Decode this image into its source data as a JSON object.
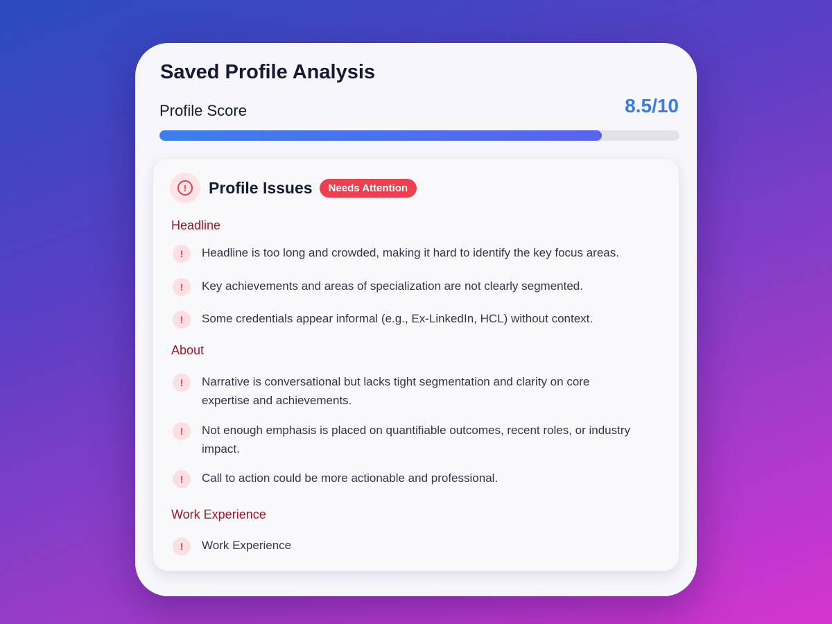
{
  "title": "Saved Profile Analysis",
  "score": {
    "label": "Profile Score",
    "value": "8.5/10",
    "percent": 85,
    "colors": [
      "#3b7fee",
      "#5a63ee"
    ]
  },
  "issues": {
    "title": "Profile Issues",
    "badge": "Needs Attention",
    "icon": "alert-circle-icon",
    "accent": "#ec4050",
    "sections": [
      {
        "name": "Headline",
        "items": [
          "Headline is too long and crowded, making it hard to identify the key focus areas.",
          "Key achievements and areas of specialization are not clearly segmented.",
          "Some credentials appear informal (e.g., Ex-LinkedIn, HCL) without context."
        ]
      },
      {
        "name": "About",
        "items": [
          "Narrative is conversational but lacks tight segmentation and clarity on core expertise and achievements.",
          "Not enough emphasis is placed on quantifiable outcomes, recent roles, or industry impact.",
          "Call to action could be more actionable and professional."
        ]
      },
      {
        "name": "Work Experience",
        "items": [
          "Work Experience"
        ]
      }
    ]
  }
}
